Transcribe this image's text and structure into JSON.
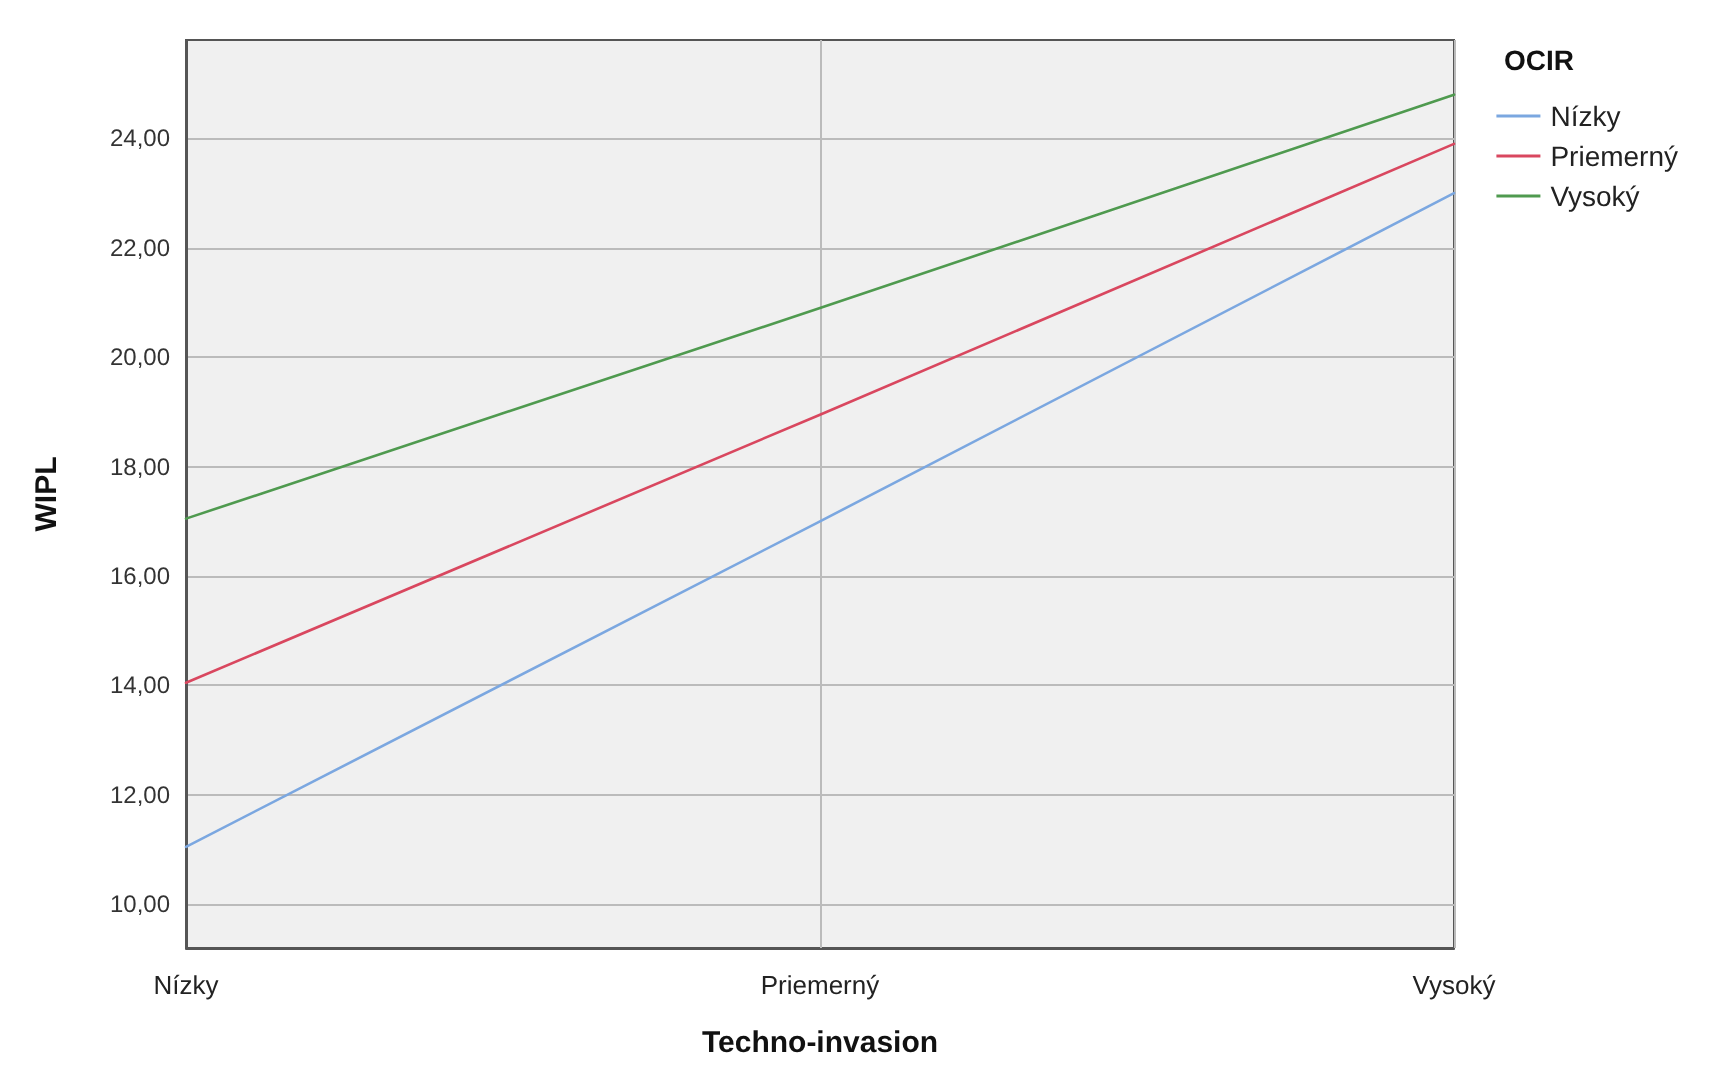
{
  "chart_data": {
    "type": "line",
    "xlabel": "Techno-invasion",
    "ylabel": "WIPL",
    "legend_title": "OCIR",
    "categories": [
      "Nízky",
      "Priemerný",
      "Vysoký"
    ],
    "series": [
      {
        "name": "Nízky",
        "color": "#7ba7e0",
        "values": [
          11.05,
          17.0,
          23.0
        ]
      },
      {
        "name": "Priemerný",
        "color": "#d9475f",
        "values": [
          14.05,
          18.95,
          23.9
        ]
      },
      {
        "name": "Vysoký",
        "color": "#4f9a4f",
        "values": [
          17.05,
          20.9,
          24.8
        ]
      }
    ],
    "ylim": [
      9.2,
      25.8
    ],
    "yticks": [
      {
        "value": 10,
        "label": "10,00"
      },
      {
        "value": 12,
        "label": "12,00"
      },
      {
        "value": 14,
        "label": "14,00"
      },
      {
        "value": 16,
        "label": "16,00"
      },
      {
        "value": 18,
        "label": "18,00"
      },
      {
        "value": 20,
        "label": "20,00"
      },
      {
        "value": 22,
        "label": "22,00"
      },
      {
        "value": 24,
        "label": "24,00"
      }
    ],
    "grid": true,
    "legend": "right",
    "marker": "none",
    "line_style": "solid"
  }
}
